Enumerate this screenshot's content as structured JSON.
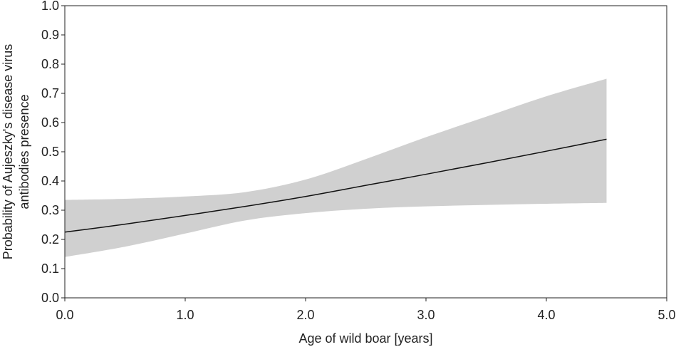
{
  "chart_data": {
    "type": "line",
    "title": "",
    "xlabel": "Age of wild boar [years]",
    "ylabel_lines": [
      "Probability of Aujeszky's disease virus",
      "antibodies presence"
    ],
    "xlim": [
      0,
      5
    ],
    "ylim": [
      0,
      1
    ],
    "x_ticks": [
      0,
      1,
      2,
      3,
      4,
      5
    ],
    "x_tick_labels": [
      "0.0",
      "1.0",
      "2.0",
      "3.0",
      "4.0",
      "5.0"
    ],
    "y_ticks": [
      0,
      0.1,
      0.2,
      0.3,
      0.4,
      0.5,
      0.6,
      0.7,
      0.8,
      0.9,
      1.0
    ],
    "y_tick_labels": [
      "0.0",
      "0.1",
      "0.2",
      "0.3",
      "0.4",
      "0.5",
      "0.6",
      "0.7",
      "0.8",
      "0.9",
      "1.0"
    ],
    "grid": false,
    "colors": {
      "line": "#111111",
      "band": "#d0d0d0",
      "frame": "#222222"
    },
    "series": [
      {
        "x": [
          0,
          0.5,
          1.0,
          1.5,
          2.0,
          2.5,
          3.0,
          3.5,
          4.0,
          4.5
        ],
        "y": [
          0.225,
          0.252,
          0.282,
          0.313,
          0.347,
          0.385,
          0.423,
          0.462,
          0.502,
          0.543
        ],
        "lower": [
          0.14,
          0.175,
          0.22,
          0.265,
          0.29,
          0.305,
          0.313,
          0.318,
          0.322,
          0.325
        ],
        "upper": [
          0.335,
          0.339,
          0.347,
          0.362,
          0.405,
          0.475,
          0.55,
          0.62,
          0.69,
          0.75
        ]
      }
    ]
  }
}
